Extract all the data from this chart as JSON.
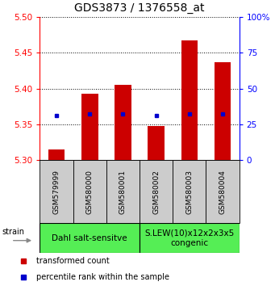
{
  "title": "GDS3873 / 1376558_at",
  "samples": [
    "GSM579999",
    "GSM580000",
    "GSM580001",
    "GSM580002",
    "GSM580003",
    "GSM580004"
  ],
  "bar_bottoms": [
    5.3,
    5.3,
    5.3,
    5.3,
    5.3,
    5.3
  ],
  "bar_tops": [
    5.315,
    5.393,
    5.405,
    5.348,
    5.468,
    5.437
  ],
  "blue_y": [
    5.362,
    5.365,
    5.365,
    5.362,
    5.365,
    5.365
  ],
  "ylim_left": [
    5.3,
    5.5
  ],
  "ylim_right": [
    0,
    100
  ],
  "yticks_left": [
    5.3,
    5.35,
    5.4,
    5.45,
    5.5
  ],
  "yticks_right": [
    0,
    25,
    50,
    75,
    100
  ],
  "bar_color": "#cc0000",
  "blue_color": "#0000cc",
  "group1_label": "Dahl salt-sensitve",
  "group2_label": "S.LEW(10)x12x2x3x5\ncongenic",
  "group1_indices": [
    0,
    1,
    2
  ],
  "group2_indices": [
    3,
    4,
    5
  ],
  "group_bg_color": "#55ee55",
  "sample_bg_color": "#cccccc",
  "strain_label": "strain",
  "legend_red": "transformed count",
  "legend_blue": "percentile rank within the sample",
  "bar_width": 0.5,
  "title_fontsize": 10,
  "tick_fontsize": 7.5,
  "label_fontsize": 7,
  "group_fontsize": 7.5
}
